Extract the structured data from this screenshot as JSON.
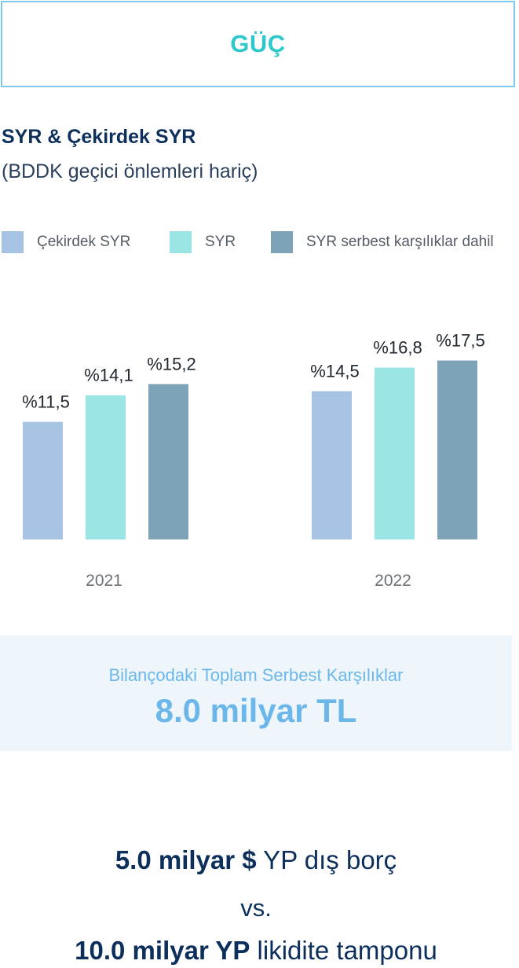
{
  "header": {
    "title": "GÜÇ"
  },
  "chart_data": {
    "type": "bar",
    "title": "SYR & Çekirdek SYR",
    "subtitle": "(BDDK geçici önlemleri hariç)",
    "categories": [
      "2021",
      "2022"
    ],
    "series": [
      {
        "name": "Çekirdek SYR",
        "color": "#a6c3e3",
        "values": [
          11.5,
          14.5
        ],
        "labels": [
          "%11,5",
          "%14,5"
        ]
      },
      {
        "name": "SYR",
        "color": "#9be5e6",
        "values": [
          14.1,
          16.8
        ],
        "labels": [
          "%14,1",
          "%16,8"
        ]
      },
      {
        "name": "SYR serbest karşılıklar dahil",
        "color": "#7fa3b6",
        "values": [
          15.2,
          17.5
        ],
        "labels": [
          "%15,2",
          "%17,5"
        ]
      }
    ],
    "legend_position": "top",
    "grid": false
  },
  "reserves": {
    "label": "Bilançodaki Toplam Serbest Karşılıklar",
    "value": "8.0 milyar TL"
  },
  "debt": {
    "strong": "5.0 milyar $",
    "rest": " YP dış borç"
  },
  "vs": "vs.",
  "liquidity": {
    "strong": "10.0 milyar YP",
    "rest": " likidite tamponu"
  }
}
